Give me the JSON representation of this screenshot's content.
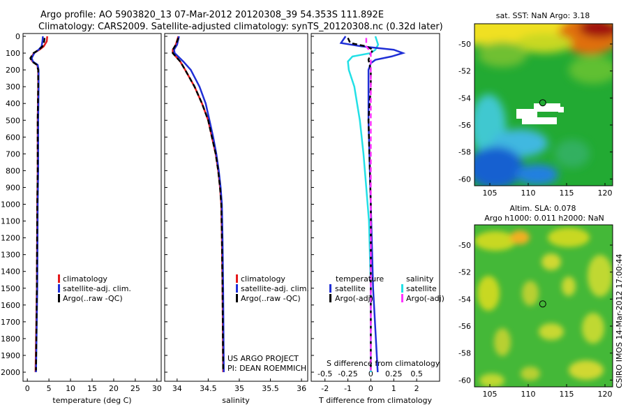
{
  "header": {
    "title_line1": "Argo profile: AO 5903820_13 07-Mar-2012 20120308_39 54.353S 111.892E",
    "title_line2": "Climatology: CARS2009. Satellite-adjusted climatology: synTS_20120308.nc (0.32d later)"
  },
  "colors": {
    "climatology": "#e41a1c",
    "satellite_adj": "#1f2fd6",
    "argo": "#000000",
    "satellite_S": "#22e0e6",
    "argo_S": "#ff33ff"
  },
  "credits": {
    "project": "US ARGO PROJECT",
    "pi": "PI: DEAN ROEMMICH",
    "watermark": "CSIRO IMOS 14-Mar-2012 17:00:44"
  },
  "chart_data": [
    {
      "id": "temperature",
      "type": "line",
      "xlabel": "temperature (deg C)",
      "xlim": [
        -1,
        31
      ],
      "xticks": [
        0,
        5,
        10,
        15,
        20,
        25,
        30
      ],
      "ylim": [
        2050,
        0
      ],
      "yticks": [
        0,
        100,
        200,
        300,
        400,
        500,
        600,
        700,
        800,
        900,
        1000,
        1100,
        1200,
        1300,
        1400,
        1500,
        1600,
        1700,
        1800,
        1900,
        2000
      ],
      "legend": [
        "climatology",
        "satellite-adj. clim.",
        "Argo(..raw -QC)"
      ],
      "series": [
        {
          "name": "climatology",
          "depth": [
            0,
            30,
            60,
            80,
            100,
            130,
            150,
            170,
            200,
            300,
            500,
            800,
            1000,
            1500,
            2000
          ],
          "values": [
            4.6,
            4.5,
            3.8,
            2.8,
            1.5,
            0.8,
            1.2,
            2.3,
            2.5,
            2.5,
            2.4,
            2.4,
            2.3,
            2.2,
            1.9
          ]
        },
        {
          "name": "satellite-adj. clim.",
          "depth": [
            0,
            30,
            60,
            80,
            100,
            130,
            150,
            170,
            200,
            300,
            500,
            800,
            1000,
            1500,
            2000
          ],
          "values": [
            3.6,
            3.5,
            3.3,
            2.6,
            1.6,
            1.0,
            1.3,
            2.4,
            2.6,
            2.6,
            2.5,
            2.5,
            2.4,
            2.3,
            2.0
          ]
        },
        {
          "name": "Argo(..raw -QC)",
          "depth": [
            10,
            30,
            60,
            80,
            100,
            130,
            150,
            170,
            200,
            300,
            500,
            800,
            1000,
            1500,
            1990
          ],
          "values": [
            4.0,
            3.9,
            3.5,
            2.7,
            1.4,
            0.7,
            1.1,
            2.2,
            2.5,
            2.5,
            2.4,
            2.4,
            2.3,
            2.2,
            2.0
          ]
        }
      ]
    },
    {
      "id": "salinity",
      "type": "line",
      "xlabel": "salinity",
      "xlim": [
        33.8,
        36.1
      ],
      "xticks": [
        34,
        34.5,
        35,
        35.5,
        36
      ],
      "ylim": [
        2050,
        0
      ],
      "legend": [
        "climatology",
        "satellite-adj. clim.",
        "Argo(..raw -QC)"
      ],
      "series": [
        {
          "name": "climatology",
          "depth": [
            0,
            50,
            80,
            100,
            150,
            200,
            300,
            400,
            500,
            600,
            700,
            800,
            900,
            1000,
            1200,
            1500,
            2000
          ],
          "values": [
            34.02,
            33.98,
            33.93,
            33.93,
            34.05,
            34.13,
            34.28,
            34.4,
            34.5,
            34.56,
            34.62,
            34.66,
            34.69,
            34.71,
            34.72,
            34.73,
            34.74
          ]
        },
        {
          "name": "satellite-adj. clim.",
          "depth": [
            0,
            50,
            80,
            100,
            150,
            200,
            300,
            400,
            500,
            600,
            700,
            800,
            900,
            1000,
            1200,
            1500,
            2000
          ],
          "values": [
            34.03,
            34.0,
            33.95,
            33.96,
            34.1,
            34.22,
            34.36,
            34.46,
            34.52,
            34.58,
            34.63,
            34.67,
            34.7,
            34.72,
            34.73,
            34.74,
            34.75
          ]
        },
        {
          "name": "Argo(..raw -QC)",
          "depth": [
            10,
            50,
            80,
            100,
            150,
            200,
            300,
            400,
            500,
            600,
            700,
            800,
            900,
            1000,
            1200,
            1500,
            1990
          ],
          "values": [
            34.02,
            33.98,
            33.93,
            33.93,
            34.05,
            34.13,
            34.28,
            34.4,
            34.5,
            34.56,
            34.62,
            34.66,
            34.69,
            34.71,
            34.72,
            34.73,
            34.74
          ]
        }
      ]
    },
    {
      "id": "differences",
      "type": "line",
      "xlabel": "T difference from climatology",
      "xlabel_top": "S difference from climatology",
      "xlim": [
        -2.6,
        3.0
      ],
      "xticks": [
        -2,
        -1,
        0,
        1,
        2
      ],
      "xticks_S": [
        -0.5,
        -0.25,
        0,
        0.25,
        0.5
      ],
      "ylim": [
        2050,
        0
      ],
      "legend_T_title": "temperature",
      "legend_S_title": "salinity",
      "legend_T": [
        "satellite",
        "Argo(-adj)"
      ],
      "legend_S": [
        "satellite",
        "Argo(-adj)"
      ],
      "series": [
        {
          "name": "T satellite",
          "depth": [
            0,
            40,
            60,
            80,
            100,
            120,
            140,
            160,
            200,
            300,
            500,
            1000,
            1500,
            2000
          ],
          "values": [
            -1.1,
            -1.3,
            -0.4,
            1.0,
            1.4,
            0.9,
            0.2,
            0.0,
            -0.1,
            -0.1,
            -0.1,
            0.0,
            0.1,
            0.3
          ]
        },
        {
          "name": "T Argo(-adj)",
          "depth": [
            10,
            40,
            60,
            80,
            100,
            140,
            200,
            300,
            500,
            1000,
            1500,
            1990
          ],
          "values": [
            -1.0,
            -0.9,
            -0.2,
            0.1,
            0.0,
            -0.1,
            0.0,
            0.0,
            -0.1,
            0.0,
            0.0,
            0.0
          ]
        },
        {
          "name": "S satellite",
          "depth": [
            0,
            50,
            80,
            100,
            120,
            150,
            200,
            300,
            500,
            700,
            900,
            1100,
            1500,
            2000
          ],
          "values": [
            0.05,
            0.08,
            0.05,
            0.0,
            -0.2,
            -0.25,
            -0.24,
            -0.18,
            -0.12,
            -0.08,
            -0.05,
            -0.02,
            0.0,
            0.0
          ]
        },
        {
          "name": "S Argo(-adj)",
          "depth": [
            10,
            60,
            80,
            100,
            200,
            400,
            800,
            1200,
            1600,
            1990
          ],
          "values": [
            -0.05,
            -0.05,
            -0.02,
            0.0,
            0.0,
            0.0,
            0.0,
            0.0,
            0.0,
            0.0
          ]
        }
      ]
    },
    {
      "id": "sst_map",
      "type": "heatmap",
      "title": "sat. SST: NaN Argo: 3.18",
      "xlim": [
        103,
        121
      ],
      "xticks": [
        105,
        110,
        115,
        120
      ],
      "ylim": [
        -60.5,
        -48.5
      ],
      "yticks": [
        -50,
        -52,
        -54,
        -56,
        -58,
        -60
      ],
      "marker": {
        "lon": 111.892,
        "lat": -54.353
      }
    },
    {
      "id": "sla_map",
      "type": "heatmap",
      "title_line1": "Altim. SLA: 0.078",
      "title_line2": "Argo h1000: 0.011 h2000: NaN",
      "xlim": [
        103,
        121
      ],
      "xticks": [
        105,
        110,
        115,
        120
      ],
      "ylim": [
        -60.5,
        -48.5
      ],
      "yticks": [
        -50,
        -52,
        -54,
        -56,
        -58,
        -60
      ],
      "marker": {
        "lon": 111.892,
        "lat": -54.353
      }
    }
  ]
}
